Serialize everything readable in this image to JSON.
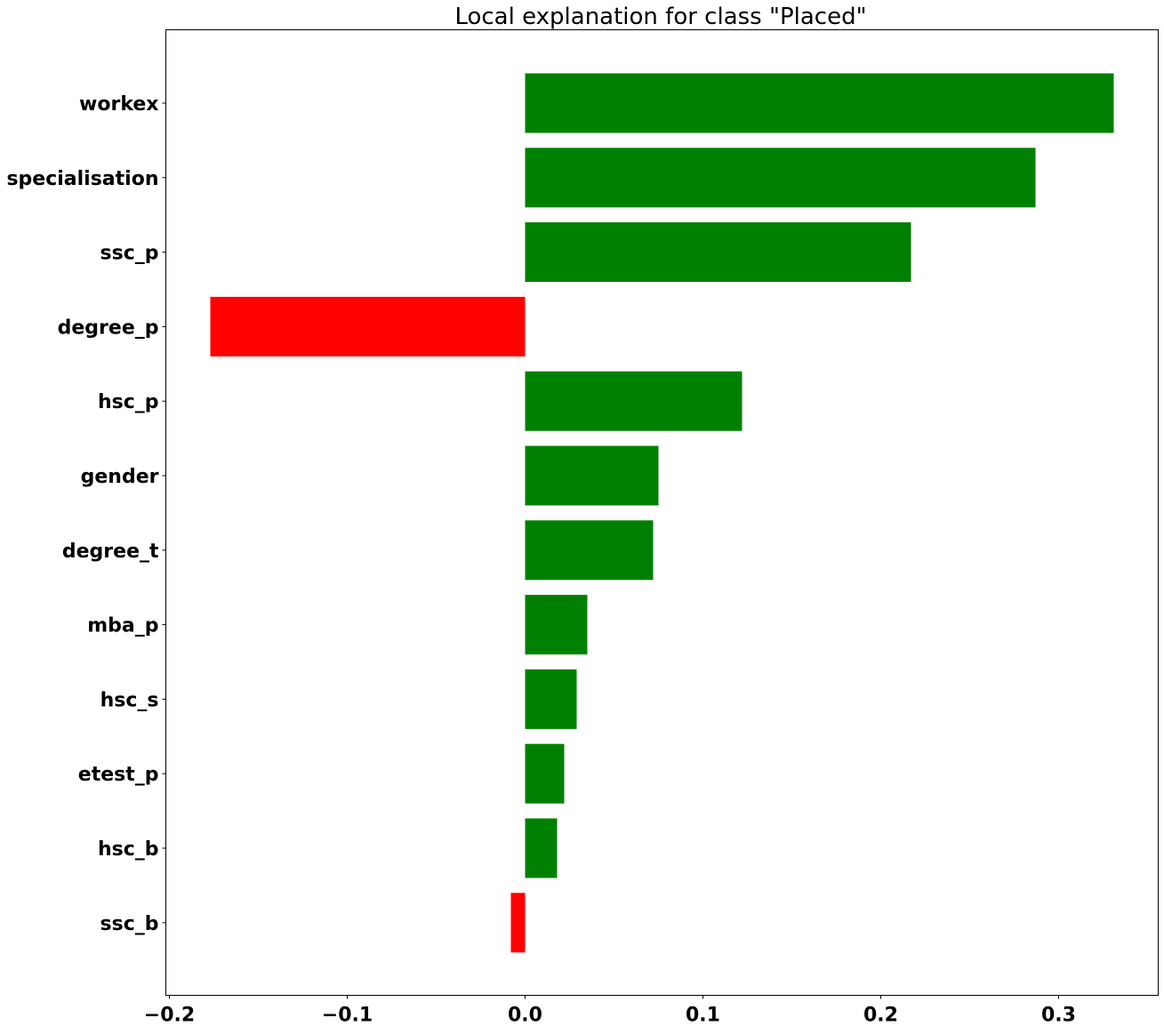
{
  "chart_data": {
    "type": "bar",
    "orientation": "horizontal",
    "title": "Local explanation for class \"Placed\"",
    "xlabel": "",
    "ylabel": "",
    "xlim": [
      -0.202,
      0.356
    ],
    "xticks": [
      -0.2,
      -0.1,
      0.0,
      0.1,
      0.2,
      0.3
    ],
    "xtick_labels": [
      "−0.2",
      "−0.1",
      "0.0",
      "0.1",
      "0.2",
      "0.3"
    ],
    "grid": false,
    "legend": "none",
    "colors": {
      "positive": "#008000",
      "negative": "#ff0000"
    },
    "categories": [
      "workex",
      "specialisation",
      "ssc_p",
      "degree_p",
      "hsc_p",
      "gender",
      "degree_t",
      "mba_p",
      "hsc_s",
      "etest_p",
      "hsc_b",
      "ssc_b"
    ],
    "values": [
      0.331,
      0.287,
      0.217,
      -0.177,
      0.122,
      0.075,
      0.072,
      0.035,
      0.029,
      0.022,
      0.018,
      -0.008
    ]
  }
}
